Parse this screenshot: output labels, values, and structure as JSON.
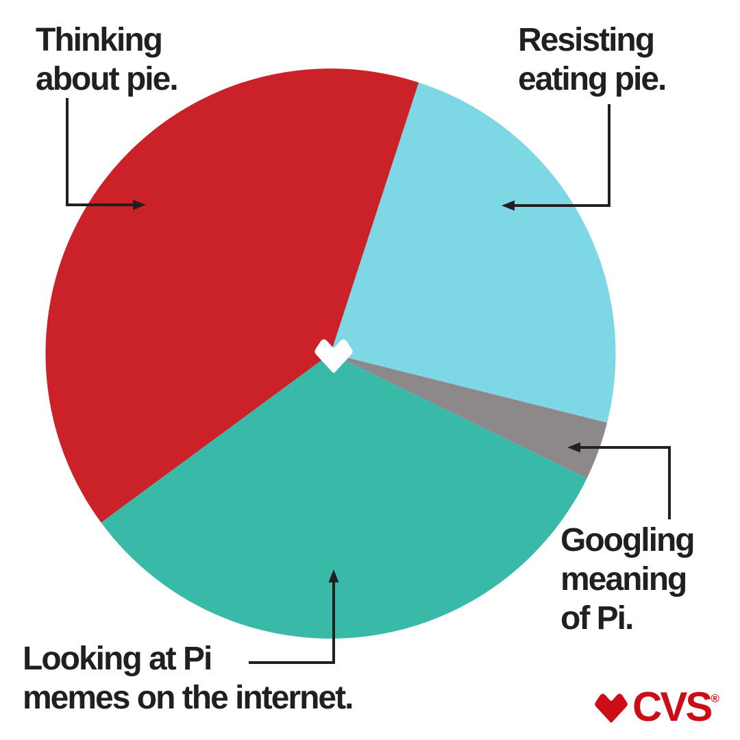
{
  "palette": {
    "background": "#FFFFFF",
    "text": "#231F20",
    "connector": "#231F20",
    "logo_red": "#CC0D15",
    "heart_white": "#FFFFFF"
  },
  "chart_data": {
    "type": "pie",
    "direction": "clockwise",
    "start_angle_deg": 18,
    "legend_position": "none",
    "annotation_style": "elbow-arrow-callouts",
    "center_icon": "white-heart",
    "slices": [
      {
        "label": "Resisting eating pie.",
        "value_pct": 23.9,
        "color": "#7ED7E4"
      },
      {
        "label": "Googling meaning of Pi.",
        "value_pct": 3.3,
        "color": "#8D898A"
      },
      {
        "label": "Looking at Pi memes on the internet.",
        "value_pct": 32.7,
        "color": "#39B9A7"
      },
      {
        "label": "Thinking about pie.",
        "value_pct": 40.1,
        "color": "#CB2229"
      }
    ]
  },
  "labels": {
    "thinking": {
      "lines": [
        "Thinking",
        "about pie."
      ]
    },
    "resisting": {
      "lines": [
        "Resisting",
        "eating pie."
      ]
    },
    "googling": {
      "lines": [
        "Googling",
        "meaning",
        "of Pi."
      ]
    },
    "looking": {
      "lines": [
        "Looking at Pi",
        "memes on the internet."
      ]
    }
  },
  "logo": {
    "brand": "CVS",
    "registered_mark": "®"
  }
}
